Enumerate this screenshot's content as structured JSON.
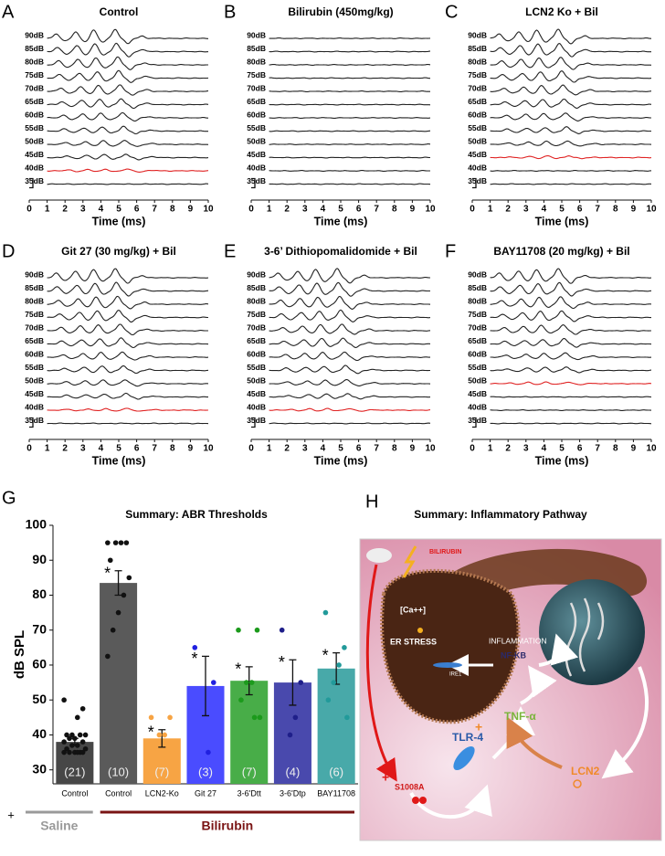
{
  "chart_data": [
    {
      "type": "traces",
      "letter": "A",
      "title": "Control",
      "x_label": "Time (ms)",
      "xlim": [
        0,
        10
      ],
      "xticks": [
        0,
        1,
        2,
        3,
        4,
        5,
        6,
        7,
        8,
        9,
        10
      ],
      "traces": [
        {
          "label": "90dB",
          "color": "#222"
        },
        {
          "label": "85dB",
          "color": "#222"
        },
        {
          "label": "80dB",
          "color": "#222"
        },
        {
          "label": "75dB",
          "color": "#222"
        },
        {
          "label": "70dB",
          "color": "#222"
        },
        {
          "label": "65dB",
          "color": "#222"
        },
        {
          "label": "60dB",
          "color": "#222"
        },
        {
          "label": "55dB",
          "color": "#222"
        },
        {
          "label": "50dB",
          "color": "#222"
        },
        {
          "label": "45dB",
          "color": "#222"
        },
        {
          "label": "40dB",
          "color": "#e02424"
        },
        {
          "label": "35dB",
          "color": "#222"
        }
      ]
    },
    {
      "type": "traces",
      "letter": "B",
      "title": "Bilirubin (450mg/kg)",
      "x_label": "Time (ms)",
      "xlim": [
        0,
        10
      ],
      "xticks": [
        0,
        1,
        2,
        3,
        4,
        5,
        6,
        7,
        8,
        9,
        10
      ],
      "traces": [
        {
          "label": "90dB",
          "color": "#222"
        },
        {
          "label": "85dB",
          "color": "#222"
        },
        {
          "label": "80dB",
          "color": "#222"
        },
        {
          "label": "75dB",
          "color": "#222"
        },
        {
          "label": "70dB",
          "color": "#222"
        },
        {
          "label": "65dB",
          "color": "#222"
        },
        {
          "label": "60dB",
          "color": "#222"
        },
        {
          "label": "55dB",
          "color": "#222"
        },
        {
          "label": "50dB",
          "color": "#222"
        },
        {
          "label": "45dB",
          "color": "#222"
        },
        {
          "label": "40dB",
          "color": "#222"
        },
        {
          "label": "35dB",
          "color": "#222"
        }
      ]
    },
    {
      "type": "traces",
      "letter": "C",
      "title": "LCN2 Ko + Bil",
      "x_label": "Time (ms)",
      "xlim": [
        0,
        10
      ],
      "xticks": [
        0,
        1,
        2,
        3,
        4,
        5,
        6,
        7,
        8,
        9,
        10
      ],
      "traces": [
        {
          "label": "90dB",
          "color": "#222"
        },
        {
          "label": "85dB",
          "color": "#222"
        },
        {
          "label": "80dB",
          "color": "#222"
        },
        {
          "label": "75dB",
          "color": "#222"
        },
        {
          "label": "70dB",
          "color": "#222"
        },
        {
          "label": "65dB",
          "color": "#222"
        },
        {
          "label": "60dB",
          "color": "#222"
        },
        {
          "label": "55dB",
          "color": "#222"
        },
        {
          "label": "50dB",
          "color": "#222"
        },
        {
          "label": "45dB",
          "color": "#e02424"
        },
        {
          "label": "40dB",
          "color": "#222"
        },
        {
          "label": "35dB",
          "color": "#222"
        }
      ]
    },
    {
      "type": "traces",
      "letter": "D",
      "title": "Git 27 (30 mg/kg) + Bil",
      "x_label": "Time (ms)",
      "xlim": [
        0,
        10
      ],
      "xticks": [
        0,
        1,
        2,
        3,
        4,
        5,
        6,
        7,
        8,
        9,
        10
      ],
      "traces": [
        {
          "label": "90dB",
          "color": "#222"
        },
        {
          "label": "85dB",
          "color": "#222"
        },
        {
          "label": "80dB",
          "color": "#222"
        },
        {
          "label": "75dB",
          "color": "#222"
        },
        {
          "label": "70dB",
          "color": "#222"
        },
        {
          "label": "65dB",
          "color": "#222"
        },
        {
          "label": "60dB",
          "color": "#222"
        },
        {
          "label": "55dB",
          "color": "#222"
        },
        {
          "label": "50dB",
          "color": "#222"
        },
        {
          "label": "45dB",
          "color": "#222"
        },
        {
          "label": "40dB",
          "color": "#e02424"
        },
        {
          "label": "35dB",
          "color": "#222"
        }
      ]
    },
    {
      "type": "traces",
      "letter": "E",
      "title": "3-6’ Dithiopomalidomide + Bil",
      "x_label": "Time (ms)",
      "xlim": [
        0,
        10
      ],
      "xticks": [
        0,
        1,
        2,
        3,
        4,
        5,
        6,
        7,
        8,
        9,
        10
      ],
      "traces": [
        {
          "label": "90dB",
          "color": "#222"
        },
        {
          "label": "85dB",
          "color": "#222"
        },
        {
          "label": "80dB",
          "color": "#222"
        },
        {
          "label": "75dB",
          "color": "#222"
        },
        {
          "label": "70dB",
          "color": "#222"
        },
        {
          "label": "65dB",
          "color": "#222"
        },
        {
          "label": "60dB",
          "color": "#222"
        },
        {
          "label": "55dB",
          "color": "#222"
        },
        {
          "label": "50dB",
          "color": "#222"
        },
        {
          "label": "45dB",
          "color": "#222"
        },
        {
          "label": "40dB",
          "color": "#e02424"
        },
        {
          "label": "35dB",
          "color": "#222"
        }
      ]
    },
    {
      "type": "traces",
      "letter": "F",
      "title": "BAY11708 (20 mg/kg) + Bil",
      "x_label": "Time (ms)",
      "xlim": [
        0,
        10
      ],
      "xticks": [
        0,
        1,
        2,
        3,
        4,
        5,
        6,
        7,
        8,
        9,
        10
      ],
      "traces": [
        {
          "label": "90dB",
          "color": "#222"
        },
        {
          "label": "85dB",
          "color": "#222"
        },
        {
          "label": "80dB",
          "color": "#222"
        },
        {
          "label": "75dB",
          "color": "#222"
        },
        {
          "label": "70dB",
          "color": "#222"
        },
        {
          "label": "65dB",
          "color": "#222"
        },
        {
          "label": "60dB",
          "color": "#222"
        },
        {
          "label": "55dB",
          "color": "#222"
        },
        {
          "label": "50dB",
          "color": "#e02424"
        },
        {
          "label": "45dB",
          "color": "#222"
        },
        {
          "label": "40dB",
          "color": "#222"
        },
        {
          "label": "35dB",
          "color": "#222"
        }
      ]
    },
    {
      "type": "bar",
      "letter": "G",
      "title": "Summary: ABR Thresholds",
      "y_label": "dB SPL",
      "categories": [
        "Control",
        "Control",
        "LCN2-Ko",
        "Git 27",
        "3-6'Dtt",
        "3-6'Dtp",
        "BAY11708"
      ],
      "values": [
        38,
        83.5,
        39,
        54,
        55.5,
        55,
        59
      ],
      "errors": [
        1,
        3.5,
        2.5,
        8.5,
        4,
        6.5,
        4.5
      ],
      "colors": [
        "#474747",
        "#5a5a5a",
        "#f7a444",
        "#4a4cff",
        "#48ad48",
        "#4949ad",
        "#48a9a9"
      ],
      "point_colors": [
        "#111111",
        "#111111",
        "#f7a444",
        "#2020e0",
        "#1c9a1c",
        "#1f1f8a",
        "#229a9a"
      ],
      "points": [
        [
          50,
          47.5,
          45,
          40,
          40,
          40,
          40,
          39,
          39,
          38,
          38,
          37,
          37,
          36,
          36,
          35,
          35,
          35,
          35,
          35,
          35
        ],
        [
          95,
          95,
          95,
          95,
          90,
          85,
          80,
          75,
          70,
          62.5
        ],
        [
          45,
          45,
          40,
          40,
          35,
          35,
          32.5
        ],
        [
          65,
          55,
          35
        ],
        [
          70,
          70,
          55,
          55,
          50,
          45,
          45
        ],
        [
          70,
          55,
          45,
          40
        ],
        [
          75,
          65,
          60,
          55,
          50,
          45
        ]
      ],
      "count_labels": [
        "(21)",
        "(10)",
        "(7)",
        "(3)",
        "(7)",
        "(4)",
        "(6)"
      ],
      "significance": [
        null,
        "*",
        "*",
        "*",
        "*",
        "*",
        "*"
      ],
      "ylim": [
        26,
        100
      ],
      "yticks": [
        30,
        40,
        50,
        60,
        70,
        80,
        90,
        100
      ],
      "treatment_marker": "+",
      "groups": [
        {
          "label": "Saline",
          "color": "#9a9a9a",
          "members": 1
        },
        {
          "label": "Bilirubin",
          "color": "#7a1414",
          "members": 6
        }
      ]
    }
  ],
  "diagram": {
    "letter": "H",
    "title": "Summary: Inflammatory Pathway",
    "labels": {
      "bilirubin": "BILIRUBIN",
      "calcium": "[Ca++]",
      "er_stress": "ER STRESS",
      "ire1": "IRE1",
      "inflammation": "INFLAMMATION",
      "nfkb": "NF-KB",
      "tnf": "TNF-α",
      "tlr4": "TLR-4",
      "lcn2": "LCN2",
      "s100": "S1008A",
      "plus": "+"
    }
  }
}
